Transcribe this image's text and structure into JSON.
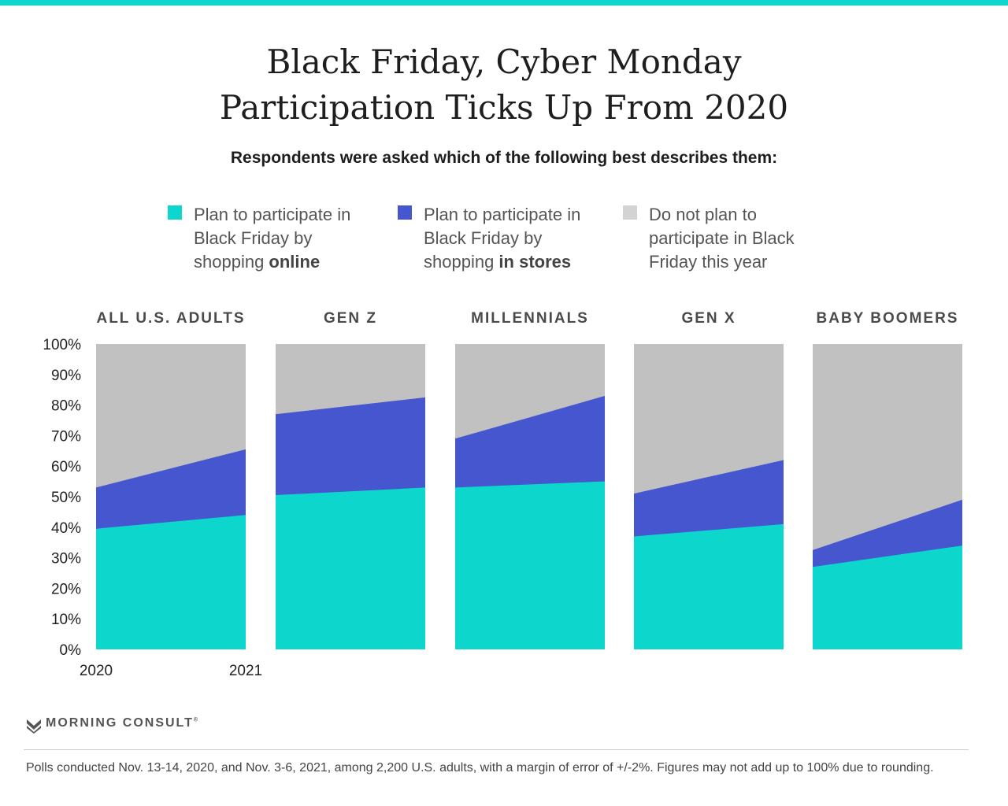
{
  "title_line1": "Black Friday, Cyber Monday",
  "title_line2": "Participation Ticks Up From 2020",
  "subtitle": "Respondents were asked which of the following best describes them:",
  "legend": [
    {
      "pre": "Plan to participate in Black Friday by shopping ",
      "bold": "online",
      "color": "#0dd6cc"
    },
    {
      "pre": "Plan to participate in Black Friday by shopping ",
      "bold": "in stores",
      "color": "#4656ce"
    },
    {
      "pre": "Do not plan to participate in Black Friday this year",
      "bold": "",
      "color": "#d3d3d3"
    }
  ],
  "chart_data": {
    "type": "area",
    "x": [
      "2020",
      "2021"
    ],
    "y_ticks": [
      "0%",
      "10%",
      "20%",
      "30%",
      "40%",
      "50%",
      "60%",
      "70%",
      "80%",
      "90%",
      "100%"
    ],
    "ylim": [
      0,
      100
    ],
    "panels": [
      {
        "name": "ALL U.S. ADULTS",
        "online": [
          39.5,
          44
        ],
        "in_stores": [
          13.5,
          21.5
        ],
        "do_not": [
          47,
          34.5
        ]
      },
      {
        "name": "GEN Z",
        "online": [
          50.5,
          53
        ],
        "in_stores": [
          26.5,
          29.5
        ],
        "do_not": [
          23,
          17.5
        ]
      },
      {
        "name": "MILLENNIALS",
        "online": [
          53,
          55
        ],
        "in_stores": [
          16,
          28
        ],
        "do_not": [
          31,
          17
        ]
      },
      {
        "name": "GEN X",
        "online": [
          37,
          41
        ],
        "in_stores": [
          14,
          21
        ],
        "do_not": [
          49,
          38
        ]
      },
      {
        "name": "BABY BOOMERS",
        "online": [
          27,
          34
        ],
        "in_stores": [
          5.5,
          15
        ],
        "do_not": [
          67.5,
          51
        ]
      }
    ],
    "colors": {
      "online": "#0dd6cc",
      "in_stores": "#4656ce",
      "do_not": "#c1c1c1"
    }
  },
  "logo_text": "MORNING CONSULT",
  "logo_mark": "®",
  "footnote": "Polls conducted Nov. 13-14, 2020, and Nov. 3-6, 2021, among 2,200 U.S. adults, with a margin of error of +/-2%. Figures may not add up to 100% due to rounding."
}
